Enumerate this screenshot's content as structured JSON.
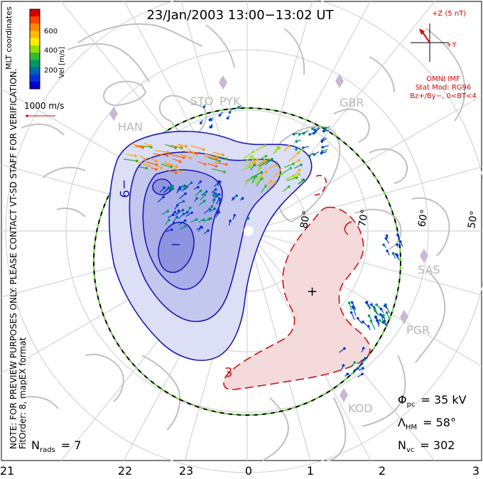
{
  "title": "23/Jan/2003 13:00−13:02 UT",
  "colorbar": {
    "unit_label": "Vel [m/s]",
    "ticks": [
      "600",
      "400",
      "200"
    ],
    "colors": [
      "#d40000",
      "#ff4400",
      "#ff8800",
      "#ffbb00",
      "#ffee00",
      "#99dd00",
      "#33bb33",
      "#009966",
      "#0066aa",
      "#0033dd",
      "#0000cc"
    ]
  },
  "coord_label": "MLT coordinates",
  "ref_vector": "1000 m/s",
  "imf": {
    "z_label": "+Z (5 nT)",
    "y_label": "+Y",
    "source": "OMNI IMF",
    "model": "Stat Mod: RG96",
    "condition": "Bz+/By−, 0<BT<4"
  },
  "side_notes": {
    "line1": "NOTE: FOR PREVIEW PURPOSES ONLY. PLEASE CONTACT VT-SD STAFF FOR VERIFICATION.",
    "line2": "FitOrder: 8, mapEX format"
  },
  "stations": [
    "STO",
    "PYK",
    "HAN",
    "GBR",
    "SAS",
    "PGR",
    "KOD"
  ],
  "lat_labels": [
    "80°",
    "70°",
    "60°",
    "50°"
  ],
  "contour_labels": {
    "negative": "−9",
    "negative_min": "−",
    "positive": "3",
    "positive_max": "+"
  },
  "stats": {
    "phi_pc_symbol": "Φ",
    "phi_pc_sub": "pc",
    "phi_pc_value": "= 35 kV",
    "lambda_hm_symbol": "Λ",
    "lambda_hm_sub": "HM",
    "lambda_hm_value": "= 58°",
    "n_vc_symbol": "N",
    "n_vc_sub": "vc",
    "n_vc_value": "= 302",
    "n_rads_symbol": "N",
    "n_rads_sub": "rads",
    "n_rads_value": "= 7"
  },
  "mlt_axis": [
    "21",
    "22",
    "23",
    "0",
    "1",
    "2",
    "3"
  ],
  "colors": {
    "neg_fill_outer": "#dcdff5",
    "neg_fill_mid": "#c4c8ef",
    "neg_fill_inner": "#a9aee8",
    "neg_fill_core": "#8e94e0",
    "neg_line": "#1a1ab0",
    "pos_fill": "#f4dada",
    "pos_line": "#cc1111",
    "land": "#c0c0c0",
    "grid": "#d4d4d4",
    "hmb_green": "#66cc44",
    "imf_red": "#dd0000"
  }
}
